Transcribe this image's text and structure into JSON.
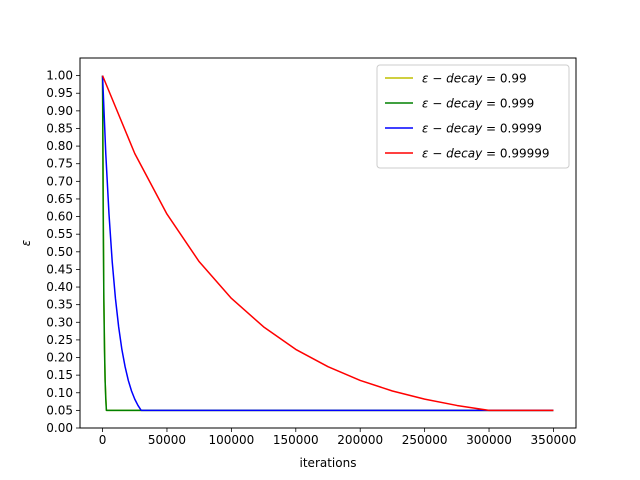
{
  "chart_data": {
    "type": "line",
    "xlabel": "iterations",
    "ylabel": "ε",
    "xlim": [
      -17500,
      367500
    ],
    "ylim": [
      0,
      1.05
    ],
    "xticks": [
      0,
      50000,
      100000,
      150000,
      200000,
      250000,
      300000,
      350000
    ],
    "xtick_labels": [
      "0",
      "50000",
      "100000",
      "150000",
      "200000",
      "250000",
      "300000",
      "350000"
    ],
    "yticks": [
      0,
      0.05,
      0.1,
      0.15,
      0.2,
      0.25,
      0.3,
      0.35,
      0.4,
      0.45,
      0.5,
      0.55,
      0.6,
      0.65,
      0.7,
      0.75,
      0.8,
      0.85,
      0.9,
      0.95,
      1.0
    ],
    "ytick_labels": [
      "0.00",
      "0.05",
      "0.10",
      "0.15",
      "0.20",
      "0.25",
      "0.30",
      "0.35",
      "0.40",
      "0.45",
      "0.50",
      "0.55",
      "0.60",
      "0.65",
      "0.70",
      "0.75",
      "0.80",
      "0.85",
      "0.90",
      "0.95",
      "1.00"
    ],
    "grid": false,
    "legend_position": "top-right",
    "series": [
      {
        "name": "ε − decay = 0.99",
        "legend_prefix": "ε − decay",
        "legend_value": "0.99",
        "color": "#bfbf00",
        "x": [
          0,
          1000,
          2000,
          3000,
          350000
        ],
        "y": [
          1.0,
          0.366,
          0.134,
          0.05,
          0.05
        ]
      },
      {
        "name": "ε − decay = 0.999",
        "legend_prefix": "ε − decay",
        "legend_value": "0.999",
        "color": "#008000",
        "x": [
          0,
          500,
          1000,
          1500,
          2000,
          2500,
          3000,
          350000
        ],
        "y": [
          1.0,
          0.606,
          0.368,
          0.223,
          0.135,
          0.082,
          0.05,
          0.05
        ],
        "note_hidden": ""
      },
      {
        "name": "ε − decay = 0.9999",
        "legend_prefix": "ε − decay",
        "legend_value": "0.9999",
        "color": "#0000ff",
        "x": [
          0,
          2500,
          5000,
          7500,
          10000,
          12500,
          15000,
          17500,
          20000,
          22500,
          25000,
          27500,
          30000,
          350000
        ],
        "y": [
          1.0,
          0.779,
          0.607,
          0.472,
          0.368,
          0.287,
          0.223,
          0.174,
          0.135,
          0.105,
          0.082,
          0.064,
          0.05,
          0.05
        ]
      },
      {
        "name": "ε − decay = 0.99999",
        "legend_prefix": "ε − decay",
        "legend_value": "0.99999",
        "color": "#ff0000",
        "x": [
          0,
          25000,
          50000,
          75000,
          100000,
          125000,
          150000,
          175000,
          200000,
          225000,
          250000,
          275000,
          300000,
          350000
        ],
        "y": [
          1.0,
          0.779,
          0.607,
          0.472,
          0.368,
          0.287,
          0.223,
          0.174,
          0.135,
          0.105,
          0.082,
          0.064,
          0.05,
          0.05
        ]
      }
    ]
  }
}
